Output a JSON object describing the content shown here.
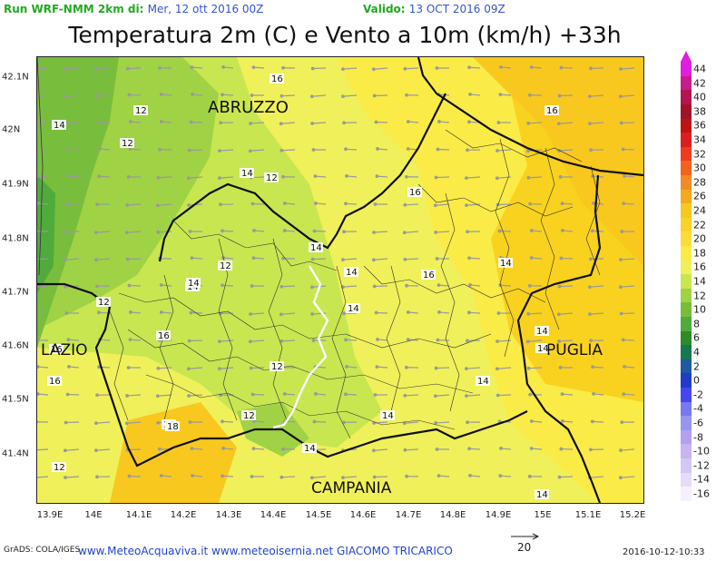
{
  "header": {
    "run_prefix": "Run WRF-NMM 2km di:",
    "run_date": "Mer, 12 ott 2016 00Z",
    "valid_prefix": "Valido:",
    "valid_date": "13 OCT 2016 09Z"
  },
  "title": "Temperatura 2m (C) e Vento a 10m (km/h) +33h",
  "axes": {
    "x_ticks": [
      "13.9E",
      "14E",
      "14.1E",
      "14.2E",
      "14.3E",
      "14.4E",
      "14.5E",
      "14.6E",
      "14.7E",
      "14.8E",
      "14.9E",
      "15E",
      "15.1E",
      "15.2E"
    ],
    "y_ticks": [
      "42.1N",
      "42N",
      "41.9N",
      "41.8N",
      "41.7N",
      "41.6N",
      "41.5N",
      "41.4N"
    ]
  },
  "region_labels": {
    "abruzzo": "ABRUZZO",
    "lazio": "LAZIO",
    "puglia": "PUGLIA",
    "campania": "CAMPANIA"
  },
  "contour_labels": [
    "16",
    "16",
    "14",
    "12",
    "12",
    "14",
    "12",
    "16",
    "14",
    "12",
    "14",
    "16",
    "14",
    "14",
    "14",
    "12",
    "12",
    "16",
    "14",
    "16",
    "14",
    "12",
    "14",
    "14",
    "14",
    "18",
    "12",
    "16",
    "14",
    "18",
    "14"
  ],
  "colorbar": {
    "labels": [
      "44",
      "42",
      "40",
      "38",
      "36",
      "34",
      "32",
      "30",
      "28",
      "26",
      "24",
      "22",
      "20",
      "18",
      "16",
      "14",
      "12",
      "10",
      "8",
      "6",
      "4",
      "2",
      "0",
      "-2",
      "-4",
      "-6",
      "-8",
      "-10",
      "-12",
      "-14",
      "-16"
    ],
    "colors": [
      "#e01ee0",
      "#c81c8c",
      "#b41450",
      "#a01428",
      "#be1414",
      "#dc1e1e",
      "#f03c1e",
      "#f0641e",
      "#f08c28",
      "#f4aa1e",
      "#f8c81e",
      "#fad228",
      "#fadc3c",
      "#faeb46",
      "#f0f05a",
      "#c8e650",
      "#a0d246",
      "#78be3c",
      "#50aa3c",
      "#2d8c28",
      "#147850",
      "#1e5aa0",
      "#1e3cc8",
      "#4646f0",
      "#7878f0",
      "#9696f0",
      "#b4a0f0",
      "#c8b4f0",
      "#d2c8f4",
      "#e6dcf8",
      "#f5f0fc"
    ]
  },
  "wind_ref": {
    "label": "20"
  },
  "footer": {
    "left": "GrADS: COLA/IGES",
    "center": "www.MeteoAcquaviva.it www.meteoisernia.net GIACOMO TRICARICO",
    "right": "2016-10-12-10:33"
  },
  "colors": {
    "accent": "#22aa22",
    "date_blue": "#3355cc",
    "footer_blue": "#2244cc"
  }
}
